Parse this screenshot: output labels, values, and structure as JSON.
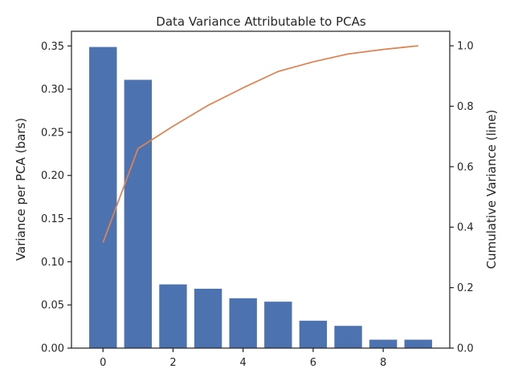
{
  "chart_data": {
    "type": "bar",
    "title": "Data Variance Attributable to PCAs",
    "xlabel": "",
    "ylabel": "Variance per PCA (bars)",
    "y2label": "Cumulative Variance (line)",
    "x": [
      0,
      1,
      2,
      3,
      4,
      5,
      6,
      7,
      8,
      9
    ],
    "xticks": [
      "0",
      "2",
      "4",
      "6",
      "8"
    ],
    "xlim": [
      -0.9,
      9.9
    ],
    "ylim": [
      0,
      0.367
    ],
    "y2lim": [
      0,
      1.048
    ],
    "yticks": [
      "0.00",
      "0.05",
      "0.10",
      "0.15",
      "0.20",
      "0.25",
      "0.30",
      "0.35"
    ],
    "y2ticks": [
      "0.0",
      "0.2",
      "0.4",
      "0.6",
      "0.8",
      "1.0"
    ],
    "grid": false,
    "series": [
      {
        "type": "bar",
        "axis": "left",
        "values": [
          0.349,
          0.311,
          0.074,
          0.069,
          0.058,
          0.054,
          0.032,
          0.026,
          0.01,
          0.01
        ],
        "color": "#4c72b0"
      },
      {
        "type": "line",
        "axis": "right",
        "values": [
          0.349,
          0.66,
          0.734,
          0.803,
          0.861,
          0.915,
          0.947,
          0.973,
          0.988,
          1.0
        ],
        "color": "#dd8452"
      }
    ]
  }
}
